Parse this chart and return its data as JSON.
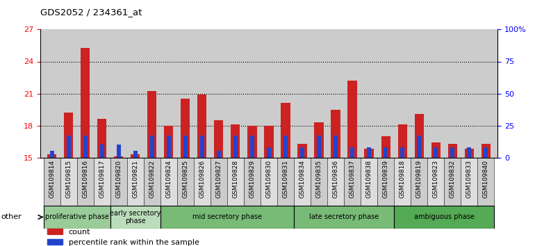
{
  "title": "GDS2052 / 234361_at",
  "samples": [
    "GSM109814",
    "GSM109815",
    "GSM109816",
    "GSM109817",
    "GSM109820",
    "GSM109821",
    "GSM109822",
    "GSM109824",
    "GSM109825",
    "GSM109826",
    "GSM109827",
    "GSM109828",
    "GSM109829",
    "GSM109830",
    "GSM109831",
    "GSM109834",
    "GSM109835",
    "GSM109836",
    "GSM109837",
    "GSM109838",
    "GSM109839",
    "GSM109818",
    "GSM109819",
    "GSM109823",
    "GSM109832",
    "GSM109833",
    "GSM109840"
  ],
  "count_values": [
    15.3,
    19.2,
    25.3,
    18.6,
    15.1,
    15.3,
    21.2,
    18.0,
    20.5,
    20.9,
    18.5,
    18.1,
    18.0,
    18.0,
    20.1,
    16.3,
    18.3,
    19.5,
    22.2,
    15.8,
    17.0,
    18.1,
    19.1,
    16.4,
    16.3,
    15.8,
    16.3
  ],
  "percentile_values": [
    5,
    17,
    17,
    10,
    10,
    5,
    17,
    17,
    17,
    17,
    5,
    17,
    17,
    8,
    17,
    8,
    17,
    17,
    8,
    8,
    8,
    8,
    17,
    8,
    8,
    8,
    8
  ],
  "bar_color": "#cc2222",
  "percentile_color": "#2244cc",
  "bg_color": "#cccccc",
  "ylim_left": [
    15,
    27
  ],
  "yticks_left": [
    15,
    18,
    21,
    24,
    27
  ],
  "ylim_right": [
    0,
    100
  ],
  "yticks_right": [
    0,
    25,
    50,
    75,
    100
  ],
  "phase_groups": [
    {
      "label": "proliferative phase",
      "start": 0,
      "end": 4,
      "color": "#99cc99"
    },
    {
      "label": "early secretory\nphase",
      "start": 4,
      "end": 7,
      "color": "#bbddbb"
    },
    {
      "label": "mid secretory phase",
      "start": 7,
      "end": 15,
      "color": "#77bb77"
    },
    {
      "label": "late secretory phase",
      "start": 15,
      "end": 21,
      "color": "#77bb77"
    },
    {
      "label": "ambiguous phase",
      "start": 21,
      "end": 27,
      "color": "#55aa55"
    }
  ],
  "legend_count": "count",
  "legend_percentile": "percentile rank within the sample",
  "bar_width": 0.55,
  "percentile_bar_width": 0.25
}
